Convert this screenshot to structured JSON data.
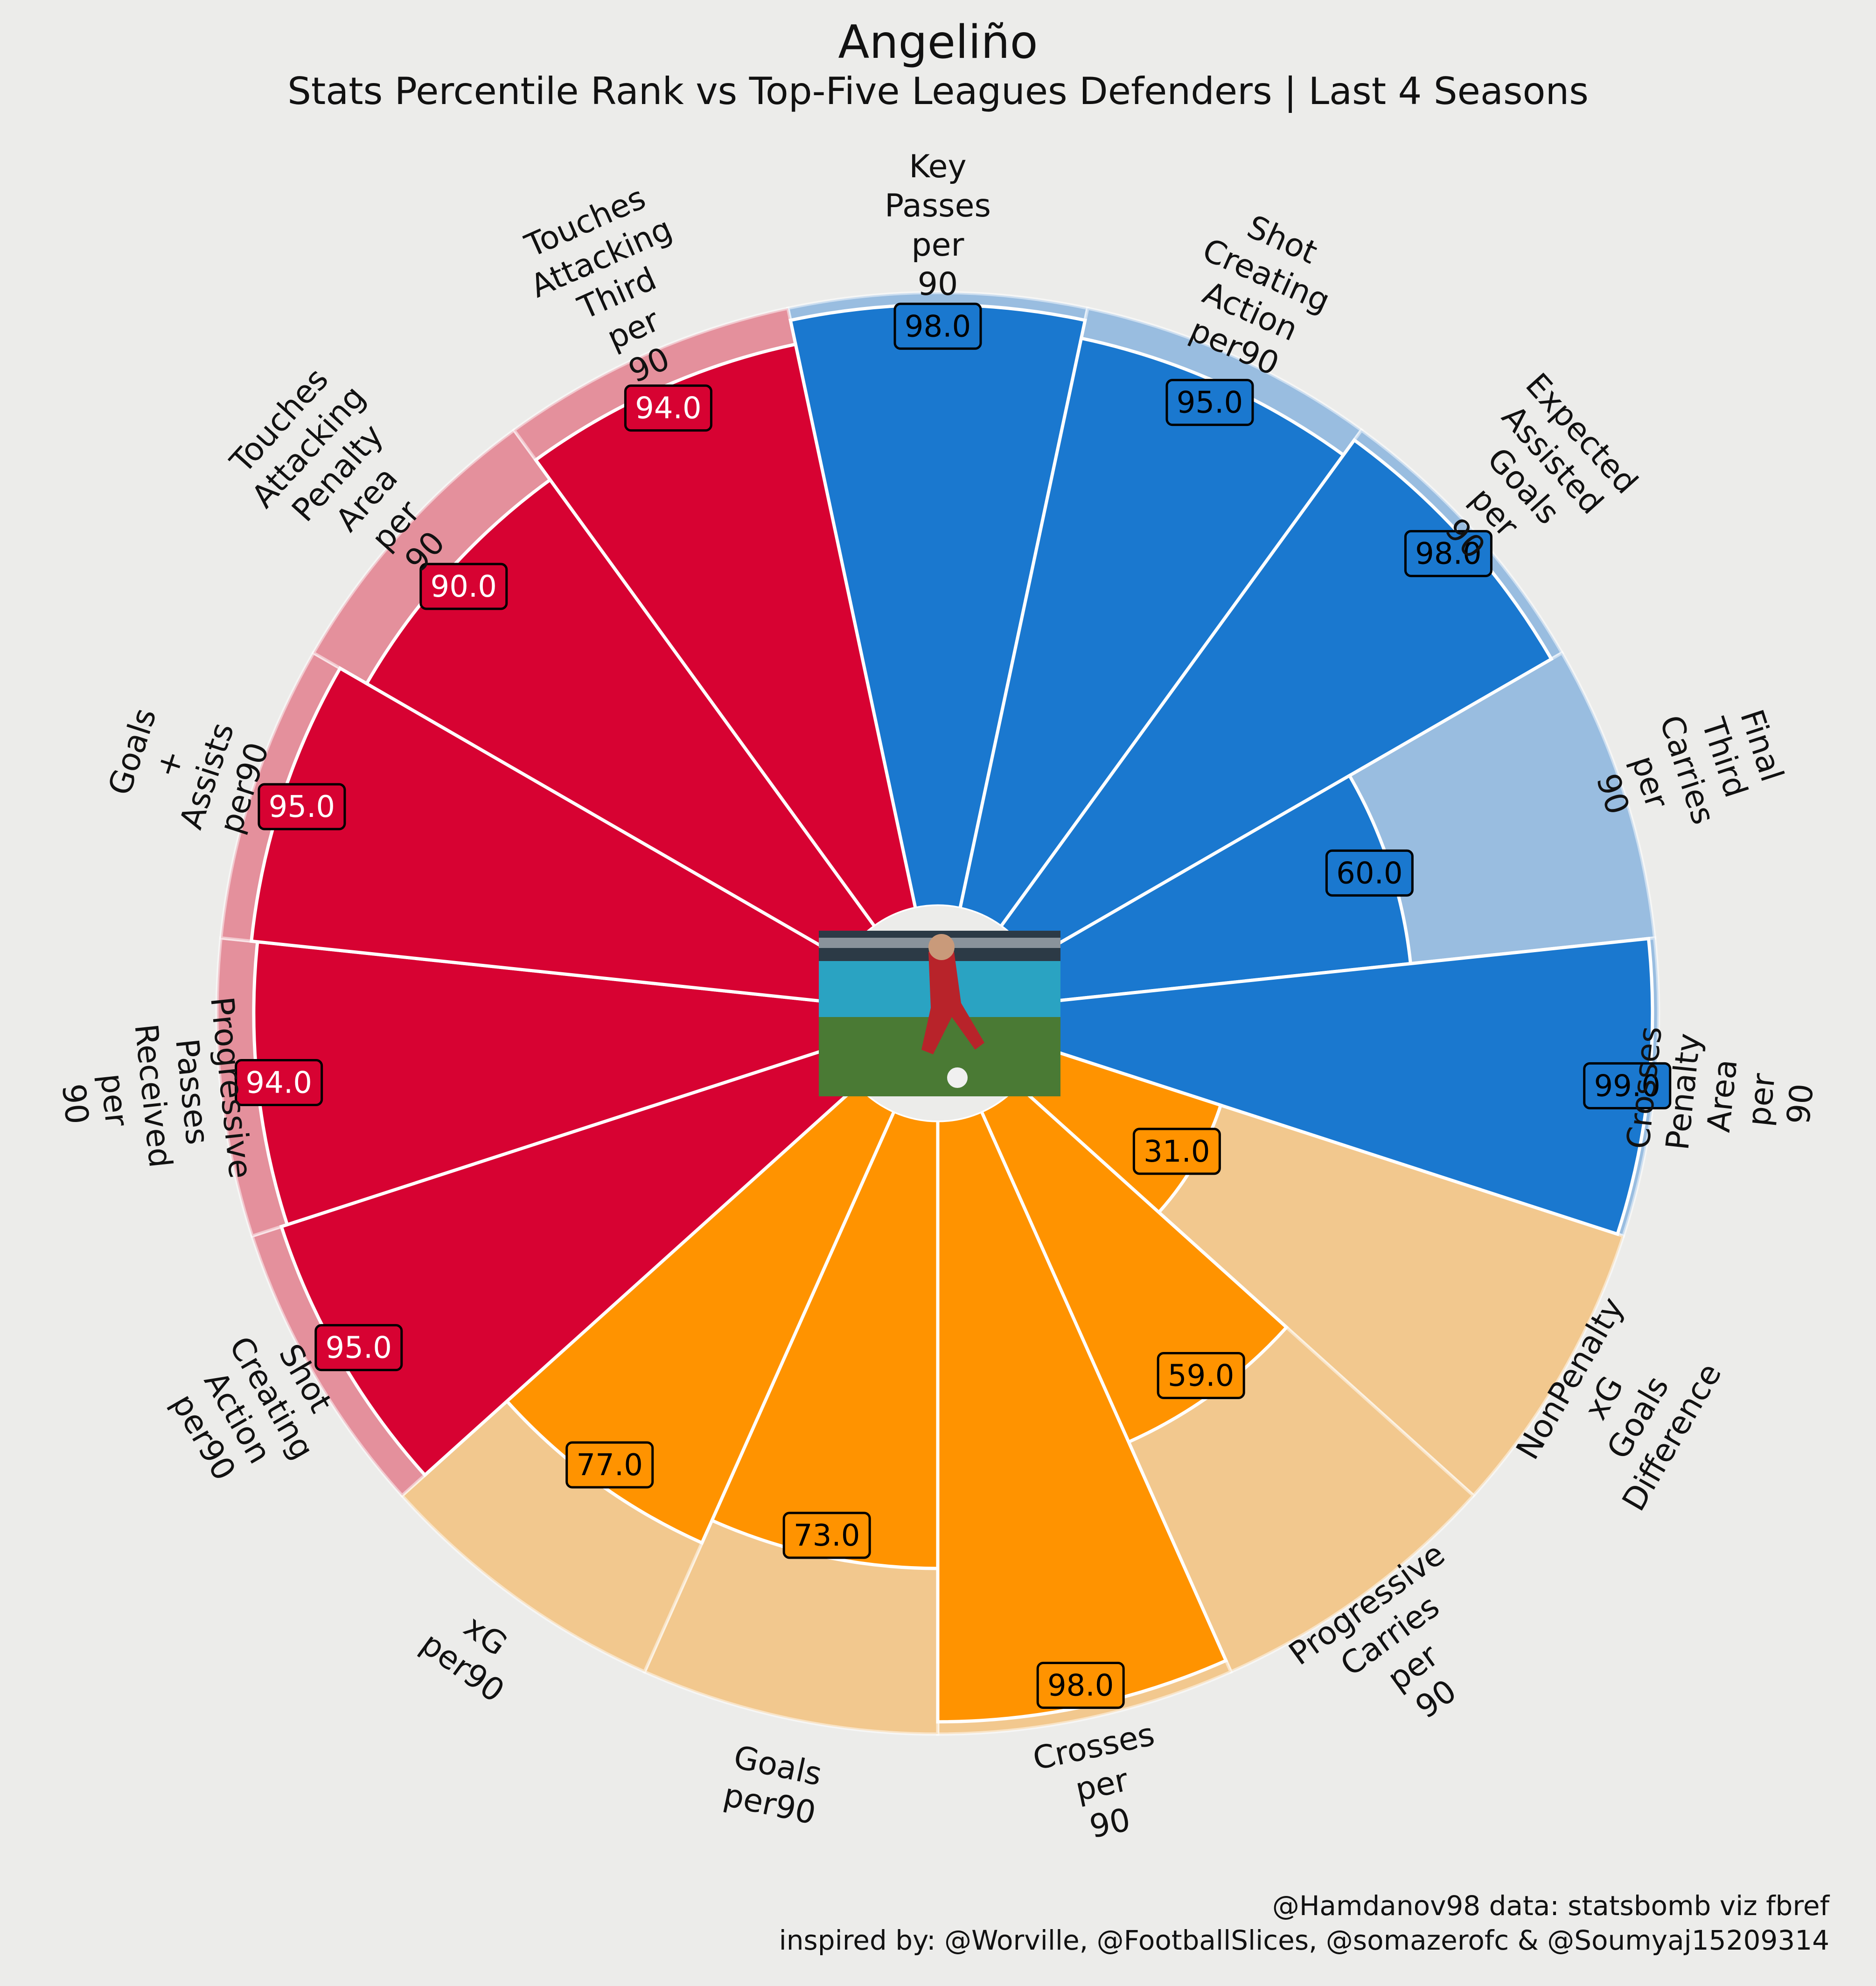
{
  "title": "Angeliño",
  "subtitle": "Stats Percentile Rank vs Top-Five Leagues Defenders | Last 4 Seasons",
  "credits": {
    "line1": "@Hamdanov98 data: statsbomb viz fbref",
    "line2": "inspired by: @Worville, @FootballSlices, @somazerofc & @Soumyaj15209314"
  },
  "colors": {
    "background": "#ececea",
    "attacking": "#d70232",
    "attacking_light": "#e4909c",
    "creation": "#1a78cf",
    "creation_light": "#99bde0",
    "progression": "#ff9300",
    "progression_light": "#f2c88e"
  },
  "center_image": "player-photo",
  "chart_data": {
    "type": "polar-bar",
    "ylim": [
      0,
      100
    ],
    "categories": [
      "Key\nPasses\nper\n90",
      "Shot\nCreating\nAction\nper90",
      "Expected\nAssisted\nGoals\nper\n90",
      "Final\nThird\nCarries\nper\n90",
      "Crosses\nPenalty\nArea\nper\n90",
      "NonPenalty\nxG\nGoals\nDifference",
      "Progressive\nCarries\nper\n90",
      "Crosses\nper\n90",
      "Goals\nper90",
      "xG\nper90",
      "Shot\nCreating\nAction\nper90",
      "Progressive\nPasses\nReceived\nper\n90",
      "Goals\n+\nAssists\nper90",
      "Touches\nAttacking\nPenalty\nArea\nper\n90",
      "Touches\nAttacking\nThird\nper\n90"
    ],
    "values": [
      98.0,
      95.0,
      98.0,
      60.0,
      99.0,
      31.0,
      59.0,
      98.0,
      73.0,
      77.0,
      95.0,
      94.0,
      95.0,
      90.0,
      94.0
    ],
    "value_labels": [
      "98.0",
      "95.0",
      "98.0",
      "60.0",
      "99.0",
      "31.0",
      "59.0",
      "98.0",
      "73.0",
      "77.0",
      "95.0",
      "94.0",
      "95.0",
      "90.0",
      "94.0"
    ],
    "groups": [
      "creation",
      "creation",
      "creation",
      "creation",
      "creation",
      "progression",
      "progression",
      "progression",
      "progression",
      "progression",
      "attacking",
      "attacking",
      "attacking",
      "attacking",
      "attacking"
    ]
  }
}
